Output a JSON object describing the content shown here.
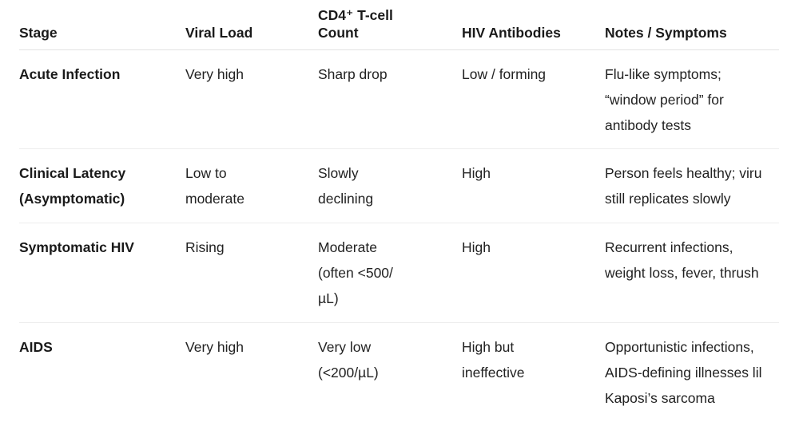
{
  "table": {
    "headers": {
      "stage": "Stage",
      "viral_load": "Viral Load",
      "cd4_line1": "CD4⁺ T-cell",
      "cd4_line2": "Count",
      "antibodies": "HIV Antibodies",
      "notes": "Notes / Symptoms"
    },
    "rows": [
      {
        "stage": "Acute Infection",
        "viral_load": "Very high",
        "cd4": "Sharp drop",
        "antibodies": "Low / forming",
        "notes_lines": [
          "Flu-like symptoms;",
          "“window period” for",
          "antibody tests"
        ]
      },
      {
        "stage_lines": [
          "Clinical Latency",
          "(Asymptomatic)"
        ],
        "viral_load_lines": [
          "Low to",
          "moderate"
        ],
        "cd4_lines": [
          "Slowly",
          "declining"
        ],
        "antibodies": "High",
        "notes_lines": [
          "Person feels healthy; viru",
          "still replicates slowly"
        ]
      },
      {
        "stage": "Symptomatic HIV",
        "viral_load": "Rising",
        "cd4_lines": [
          "Moderate",
          "(often <500/",
          "µL)"
        ],
        "antibodies": "High",
        "notes_lines": [
          "Recurrent infections,",
          "weight loss, fever, thrush"
        ]
      },
      {
        "stage": "AIDS",
        "viral_load": "Very high",
        "cd4_lines": [
          "Very low",
          "(<200/µL)"
        ],
        "antibodies_lines": [
          "High but",
          "ineffective"
        ],
        "notes_lines": [
          "Opportunistic infections,",
          "AIDS-defining illnesses lil",
          "Kaposi’s sarcoma"
        ]
      }
    ]
  }
}
